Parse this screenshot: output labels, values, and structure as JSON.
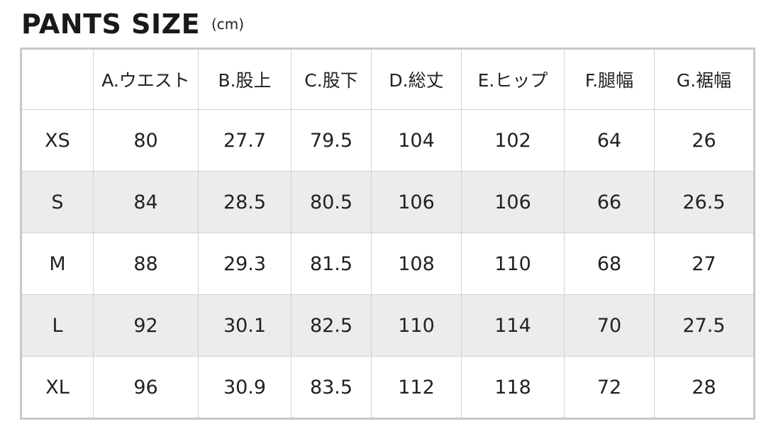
{
  "title": "PANTS SIZE",
  "unit": "(cm)",
  "table": {
    "headers": [
      "",
      "A.ウエスト",
      "B.股上",
      "C.股下",
      "D.総丈",
      "E.ヒップ",
      "F.腿幅",
      "G.裾幅"
    ],
    "rows": [
      [
        "XS",
        "80",
        "27.7",
        "79.5",
        "104",
        "102",
        "64",
        "26"
      ],
      [
        "S",
        "84",
        "28.5",
        "80.5",
        "106",
        "106",
        "66",
        "26.5"
      ],
      [
        "M",
        "88",
        "29.3",
        "81.5",
        "108",
        "110",
        "68",
        "27"
      ],
      [
        "L",
        "92",
        "30.1",
        "82.5",
        "110",
        "114",
        "70",
        "27.5"
      ],
      [
        "XL",
        "96",
        "30.9",
        "83.5",
        "112",
        "118",
        "72",
        "28"
      ]
    ]
  },
  "colors": {
    "alt_row": "#ececec",
    "border": "#d2d2d2"
  }
}
